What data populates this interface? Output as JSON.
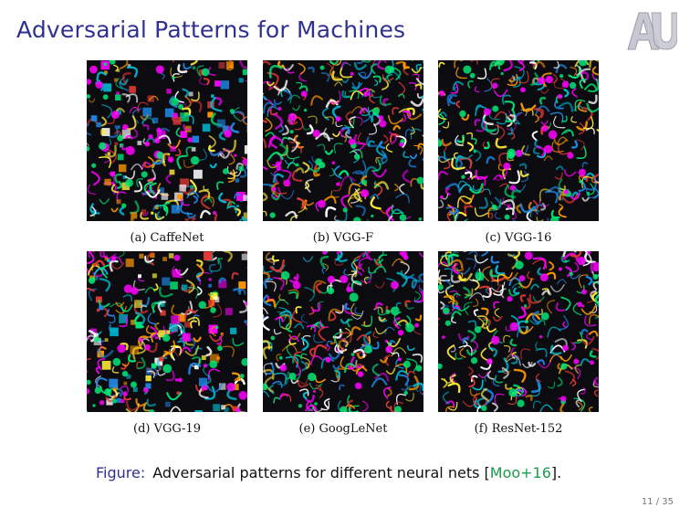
{
  "slide": {
    "title": "Adversarial Patterns for Machines",
    "page": "11 / 35"
  },
  "logo": {
    "name": "AU monogram",
    "color": "#c8c8d2"
  },
  "panels": [
    {
      "label": "(a)  CaffeNet"
    },
    {
      "label": "(b)  VGG-F"
    },
    {
      "label": "(c)  VGG-16"
    },
    {
      "label": "(d)  VGG-19"
    },
    {
      "label": "(e)  GoogLeNet"
    },
    {
      "label": "(f)  ResNet-152"
    }
  ],
  "caption": {
    "label": "Figure:",
    "text": "Adversarial patterns for different neural nets",
    "cite_open": " [",
    "cite": "Moo+16",
    "cite_close": "]."
  },
  "colors": {
    "title": "#2e3192",
    "citation": "#1a9c4a",
    "pattern_palette": [
      "#ff00ff",
      "#00e676",
      "#00bcd4",
      "#ff9800",
      "#ffeb3b",
      "#1e88e5",
      "#e53935",
      "#ffffff"
    ]
  }
}
